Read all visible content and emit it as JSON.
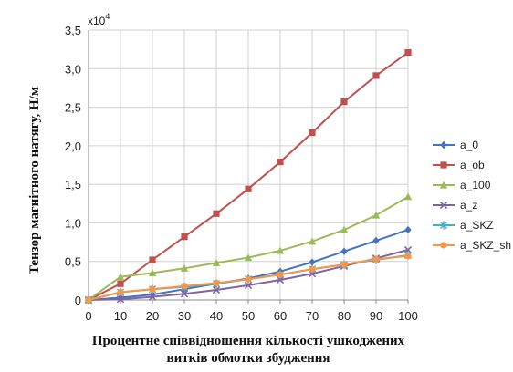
{
  "chart_data": {
    "type": "line",
    "multiplier": {
      "base": "x10",
      "exp": "4"
    },
    "ylabel": "Тензор магнітного натягу, Н/м",
    "xlabel": [
      "Процентне співвідношення кількості ушкоджених",
      "витків обмотки збудження"
    ],
    "xlim": [
      0,
      100
    ],
    "ylim": [
      0,
      3.5
    ],
    "x_ticks": [
      "0",
      "10",
      "20",
      "30",
      "40",
      "50",
      "60",
      "70",
      "80",
      "90",
      "100"
    ],
    "y_ticks": [
      "0",
      "0,5",
      "1,0",
      "1,5",
      "2,0",
      "2,5",
      "3,0",
      "3,5"
    ],
    "grid": true,
    "legend": "right",
    "x": [
      0,
      10,
      20,
      30,
      40,
      50,
      60,
      70,
      80,
      90,
      100
    ],
    "series": [
      {
        "name": "a_0",
        "color": "#4472c4",
        "marker": "diamond",
        "values": [
          0,
          0.03,
          0.07,
          0.14,
          0.21,
          0.28,
          0.37,
          0.49,
          0.63,
          0.77,
          0.91
        ]
      },
      {
        "name": "a_ob",
        "color": "#c0504d",
        "marker": "square",
        "values": [
          0,
          0.21,
          0.52,
          0.82,
          1.12,
          1.44,
          1.79,
          2.17,
          2.57,
          2.91,
          3.21
        ]
      },
      {
        "name": "a_100",
        "color": "#9bbb59",
        "marker": "triangle",
        "values": [
          0,
          0.3,
          0.35,
          0.41,
          0.48,
          0.55,
          0.64,
          0.76,
          0.91,
          1.1,
          1.34
        ]
      },
      {
        "name": "a_z",
        "color": "#8064a2",
        "marker": "x",
        "values": [
          0,
          0.01,
          0.04,
          0.08,
          0.13,
          0.19,
          0.26,
          0.34,
          0.44,
          0.54,
          0.65
        ]
      },
      {
        "name": "a_SKZ",
        "color": "#4bacc6",
        "marker": "star",
        "values": [
          0,
          0.1,
          0.14,
          0.17,
          0.21,
          0.27,
          0.33,
          0.4,
          0.46,
          0.52,
          0.58
        ]
      },
      {
        "name": "a_SKZ_sh",
        "color": "#f79646",
        "marker": "circle",
        "values": [
          0,
          0.1,
          0.14,
          0.18,
          0.22,
          0.27,
          0.33,
          0.4,
          0.46,
          0.53,
          0.57
        ]
      }
    ]
  }
}
